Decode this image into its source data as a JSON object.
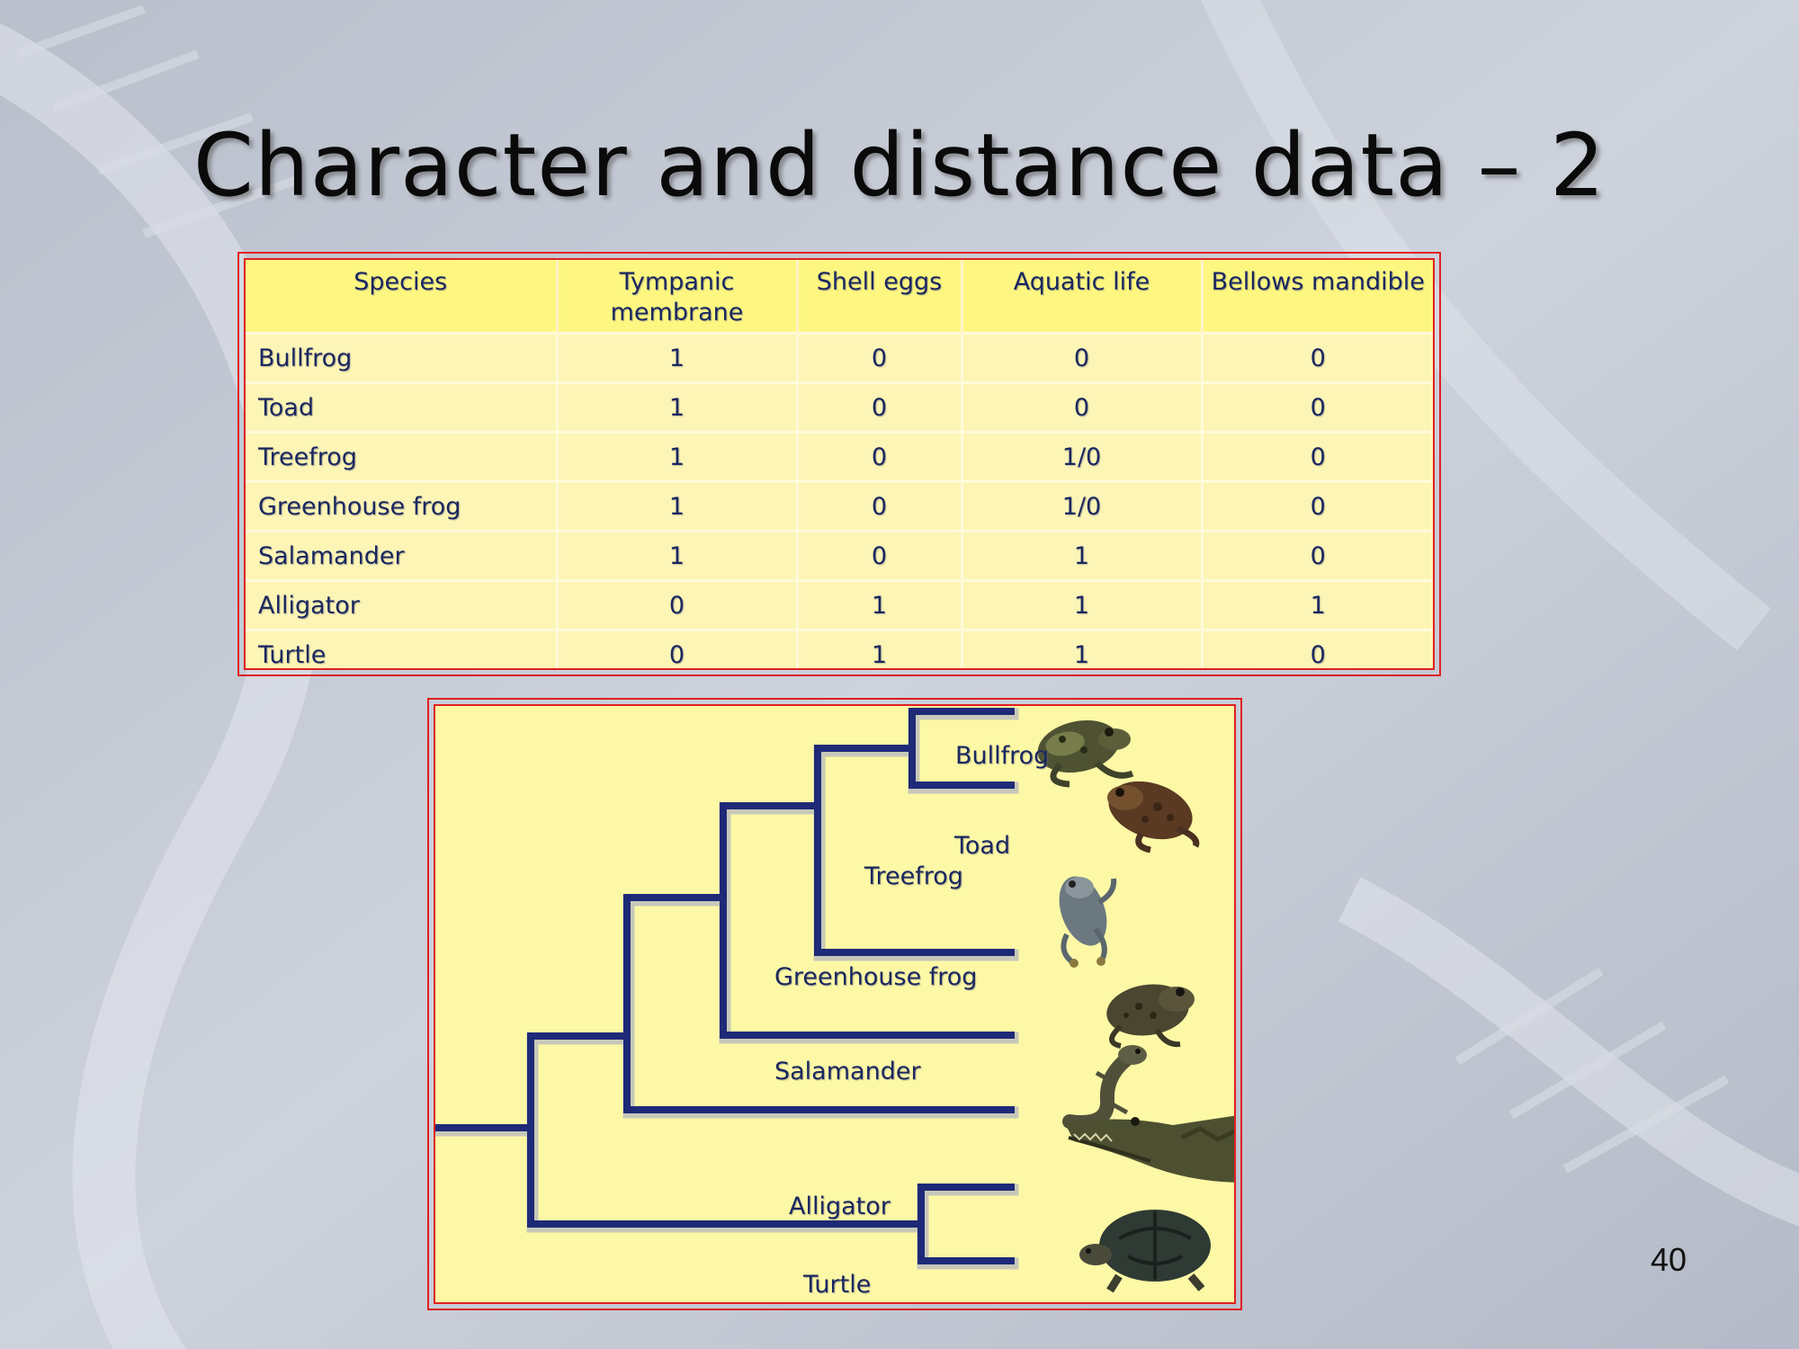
{
  "slide": {
    "title": "Character and distance data – 2",
    "page_number": "40"
  },
  "table": {
    "headers": [
      "Species",
      "Tympanic membrane",
      "Shell eggs",
      "Aquatic life",
      "Bellows mandible"
    ],
    "rows": [
      [
        "Bullfrog",
        "1",
        "0",
        "0",
        "0"
      ],
      [
        "Toad",
        "1",
        "0",
        "0",
        "0"
      ],
      [
        "Treefrog",
        "1",
        "0",
        "1/0",
        "0"
      ],
      [
        "Greenhouse frog",
        "1",
        "0",
        "1/0",
        "0"
      ],
      [
        "Salamander",
        "1",
        "0",
        "1",
        "0"
      ],
      [
        "Alligator",
        "0",
        "1",
        "1",
        "1"
      ],
      [
        "Turtle",
        "0",
        "1",
        "1",
        "0"
      ]
    ]
  },
  "tree": {
    "leaves": [
      "Bullfrog",
      "Toad",
      "Treefrog",
      "Greenhouse frog",
      "Salamander",
      "Alligator",
      "Turtle"
    ],
    "animal_images": [
      "bullfrog-photo",
      "toad-photo",
      "treefrog-photo",
      "greenhouse-frog-photo",
      "salamander-photo",
      "alligator-photo",
      "turtle-photo"
    ],
    "branch_color": "#1e2a78",
    "panel_color": "#fdf8a6"
  },
  "colors": {
    "frame_red": "#e02020",
    "header_yellow": "#fdf781",
    "cell_yellow": "#fdf5b6",
    "text_navy": "#1a2760"
  }
}
